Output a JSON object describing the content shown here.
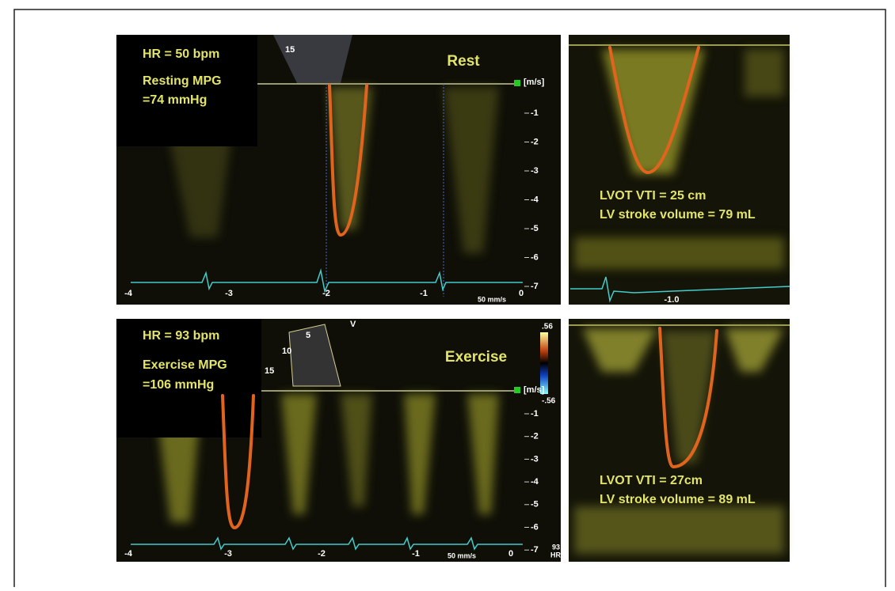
{
  "rest": {
    "depth": "15",
    "title": "Rest",
    "hr": "HR = 50 bpm",
    "mpg_label": "Resting MPG",
    "mpg_value": "=74 mmHg",
    "unit": "[m/s]",
    "scale": [
      "-1",
      "-2",
      "-3",
      "-4",
      "-5",
      "-6",
      "-7"
    ],
    "time": [
      "-4",
      "-3",
      "-2",
      "-1",
      "0"
    ],
    "sweep": "50 mm/s"
  },
  "rest_lvot": {
    "vti": "LVOT VTI = 25 cm",
    "stroke_volume": "LV stroke volume = 79 mL",
    "time": "-1.0"
  },
  "exercise": {
    "depth": [
      "5",
      "10",
      "15"
    ],
    "probe": "V",
    "title": "Exercise",
    "hr": "HR = 93 bpm",
    "mpg_label": "Exercise MPG",
    "mpg_value": "=106 mmHg",
    "color_max": ".56",
    "color_min": "-.56",
    "unit": "[m/s]",
    "scale": [
      "-1",
      "-2",
      "-3",
      "-4",
      "-5",
      "-6",
      "-7"
    ],
    "time": [
      "-4",
      "-3",
      "-2",
      "-1",
      "0"
    ],
    "sweep": "50 mm/s",
    "hr_value": "93",
    "hr_unit": "HR"
  },
  "exercise_lvot": {
    "vti": "LVOT VTI = 27cm",
    "stroke_volume": "LV stroke volume = 89 mL"
  }
}
